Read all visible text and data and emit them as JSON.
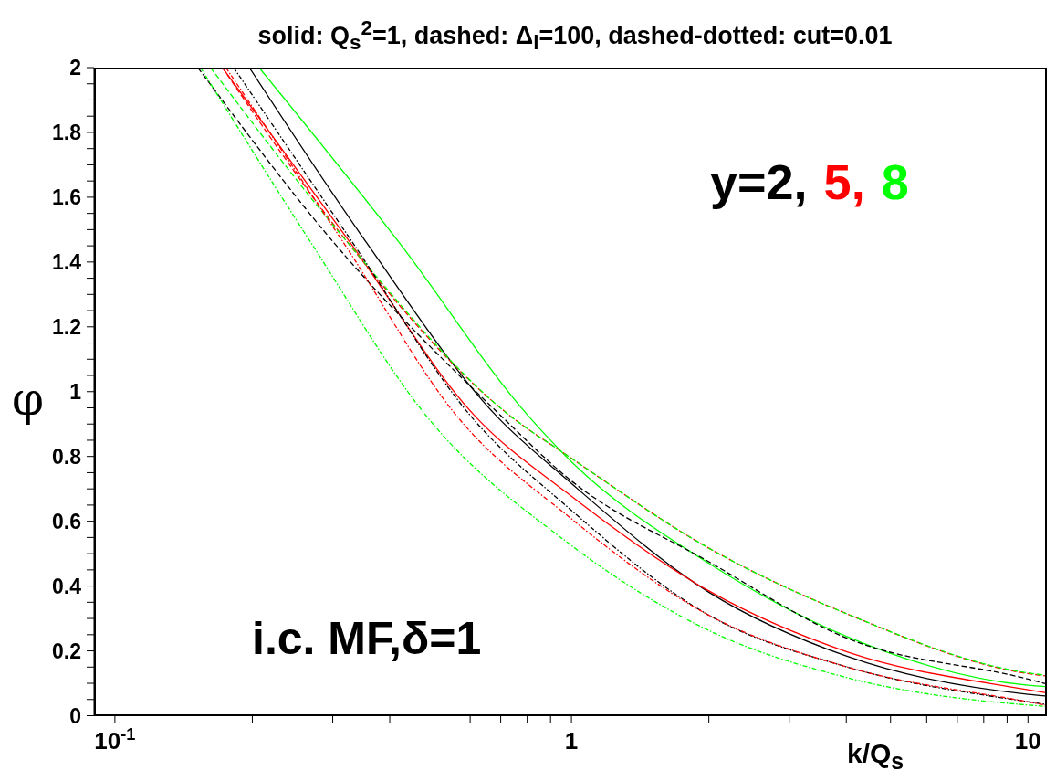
{
  "chart_data": {
    "type": "line",
    "title": "solid: Q$_{s}$$^{2}$=1, dashed: Δ$_{l}$=100, dashed-dotted: cut=0.01",
    "xlabel": "k/Q$_{s}$",
    "ylabel": "φ",
    "annotations": [
      "y=2,",
      "5,",
      "8",
      "i.c. MF,δ=1"
    ],
    "log": "x",
    "xlim": [
      0.09,
      11
    ],
    "xticks": [
      {
        "value": 0.1,
        "label": "10$^{-1}$"
      },
      {
        "value": 0.2,
        "label": null
      },
      {
        "value": 0.3,
        "label": null
      },
      {
        "value": 0.4,
        "label": null
      },
      {
        "value": 0.5,
        "label": null
      },
      {
        "value": 0.6,
        "label": null
      },
      {
        "value": 0.7,
        "label": null
      },
      {
        "value": 0.8,
        "label": null
      },
      {
        "value": 0.9,
        "label": null
      },
      1,
      {
        "value": 2,
        "label": null
      },
      {
        "value": 3,
        "label": null
      },
      {
        "value": 4,
        "label": null
      },
      {
        "value": 5,
        "label": null
      },
      {
        "value": 6,
        "label": null
      },
      {
        "value": 7,
        "label": null
      },
      {
        "value": 8,
        "label": null
      },
      {
        "value": 9,
        "label": null
      },
      10
    ],
    "ylim": [
      0,
      2
    ],
    "yticks": [
      0,
      {
        "value": 0.05,
        "label": null
      },
      {
        "value": 0.1,
        "label": null
      },
      {
        "value": 0.15,
        "label": null
      },
      0.2,
      {
        "value": 0.25,
        "label": null
      },
      {
        "value": 0.3,
        "label": null
      },
      {
        "value": 0.35,
        "label": null
      },
      0.4,
      {
        "value": 0.45,
        "label": null
      },
      {
        "value": 0.5,
        "label": null
      },
      {
        "value": 0.55,
        "label": null
      },
      0.6,
      {
        "value": 0.65,
        "label": null
      },
      {
        "value": 0.7,
        "label": null
      },
      {
        "value": 0.75,
        "label": null
      },
      0.8,
      {
        "value": 0.85,
        "label": null
      },
      {
        "value": 0.9,
        "label": null
      },
      {
        "value": 0.95,
        "label": null
      },
      1,
      {
        "value": 1.05,
        "label": null
      },
      {
        "value": 1.1,
        "label": null
      },
      {
        "value": 1.15,
        "label": null
      },
      1.2,
      {
        "value": 1.25,
        "label": null
      },
      {
        "value": 1.3,
        "label": null
      },
      {
        "value": 1.35,
        "label": null
      },
      1.4,
      {
        "value": 1.45,
        "label": null
      },
      {
        "value": 1.5,
        "label": null
      },
      {
        "value": 1.55,
        "label": null
      },
      1.6,
      {
        "value": 1.65,
        "label": null
      },
      {
        "value": 1.7,
        "label": null
      },
      {
        "value": 1.75,
        "label": null
      },
      1.8,
      {
        "value": 1.85,
        "label": null
      },
      {
        "value": 1.9,
        "label": null
      },
      {
        "value": 1.95,
        "label": null
      },
      2
    ],
    "grid": false,
    "legend": false,
    "marker": "none",
    "series": [
      {
        "color": "#000000",
        "line_style": "solid",
        "x": [
          0.197,
          0.356,
          0.688,
          0.975,
          2,
          4,
          10,
          10.9
        ],
        "values": [
          2,
          1.459,
          0.922,
          0.73,
          0.381,
          0.184,
          0.066,
          0.061
        ]
      },
      {
        "color": "#ff0000",
        "line_style": "solid",
        "x": [
          0.172,
          0.328,
          0.617,
          0.975,
          2,
          4,
          10,
          10.9
        ],
        "values": [
          2,
          1.459,
          0.922,
          0.689,
          0.385,
          0.198,
          0.08,
          0.071
        ]
      },
      {
        "color": "#00ff00",
        "line_style": "solid",
        "x": [
          0.207,
          0.42,
          0.808,
          0.975,
          2,
          4,
          10,
          10.9
        ],
        "values": [
          2,
          1.459,
          0.922,
          0.799,
          0.47,
          0.245,
          0.094,
          0.09
        ]
      },
      {
        "color": "#000000",
        "line_style": "dashed",
        "x": [
          0.152,
          0.302,
          0.705,
          0.975,
          2,
          4,
          10,
          10.9
        ],
        "values": [
          2,
          1.459,
          0.922,
          0.737,
          0.475,
          0.24,
          0.113,
          0.099
        ]
      },
      {
        "color": "#ff0000",
        "line_style": "dashed",
        "x": [
          0.172,
          0.324,
          0.739,
          0.975,
          2,
          4,
          10,
          10.9
        ],
        "values": [
          2,
          1.459,
          0.922,
          0.805,
          0.517,
          0.315,
          0.13,
          0.123
        ]
      },
      {
        "color": "#00ff00",
        "line_style": "dashed",
        "x": [
          0.162,
          0.324,
          0.739,
          0.975,
          2,
          4,
          10,
          10.9
        ],
        "values": [
          2,
          1.459,
          0.922,
          0.805,
          0.517,
          0.315,
          0.132,
          0.125
        ]
      },
      {
        "color": "#000000",
        "line_style": "dashdot",
        "x": [
          0.182,
          0.332,
          0.604,
          0.975,
          2,
          4,
          10,
          10.9
        ],
        "values": [
          2,
          1.459,
          0.922,
          0.647,
          0.31,
          0.151,
          0.043,
          0.035
        ]
      },
      {
        "color": "#ff0000",
        "line_style": "dashdot",
        "x": [
          0.175,
          0.317,
          0.563,
          0.975,
          2,
          4,
          10,
          10.9
        ],
        "values": [
          2,
          1.459,
          0.922,
          0.62,
          0.31,
          0.151,
          0.043,
          0.033
        ]
      },
      {
        "color": "#00ff00",
        "line_style": "dashdot",
        "x": [
          0.154,
          0.269,
          0.483,
          0.975,
          2,
          4,
          10,
          10.9
        ],
        "values": [
          2,
          1.459,
          0.922,
          0.537,
          0.263,
          0.118,
          0.033,
          0.029
        ]
      }
    ]
  }
}
